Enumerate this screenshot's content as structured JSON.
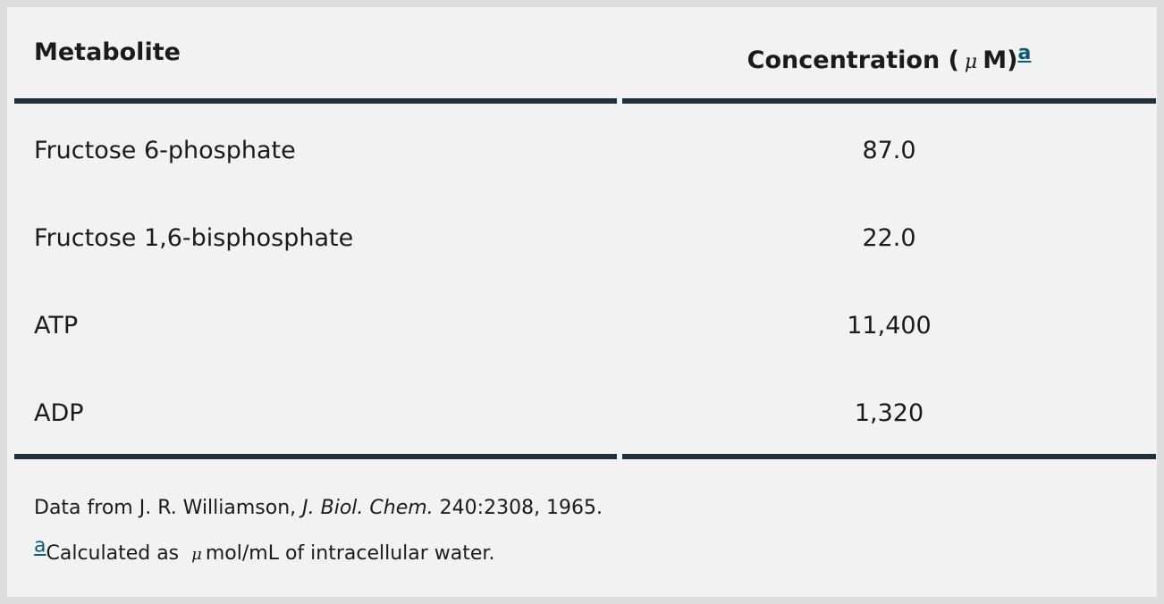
{
  "table": {
    "headers": {
      "metabolite": "Metabolite",
      "concentration_prefix": "Concentration (",
      "concentration_mu": "μ",
      "concentration_suffix": "M)",
      "footnote_marker": "a"
    },
    "rows": [
      {
        "name": "Fructose 6-phosphate",
        "value": "87.0"
      },
      {
        "name": "Fructose 1,6-bisphosphate",
        "value": "22.0"
      },
      {
        "name": "ATP",
        "value": "11,400"
      },
      {
        "name": "ADP",
        "value": "1,320"
      }
    ]
  },
  "footnotes": {
    "source_prefix": "Data from J. R. Williamson, ",
    "source_journal": "J. Biol. Chem.",
    "source_suffix": " 240:2308, 1965.",
    "note_marker": "a",
    "note_prefix": "Calculated as",
    "note_mu": "μ",
    "note_suffix": "mol/mL of intracellular water."
  },
  "colors": {
    "background": "#f2f2f2",
    "grid": "#dddddd",
    "rule": "#1e2e3a",
    "link": "#0b5a7a"
  }
}
